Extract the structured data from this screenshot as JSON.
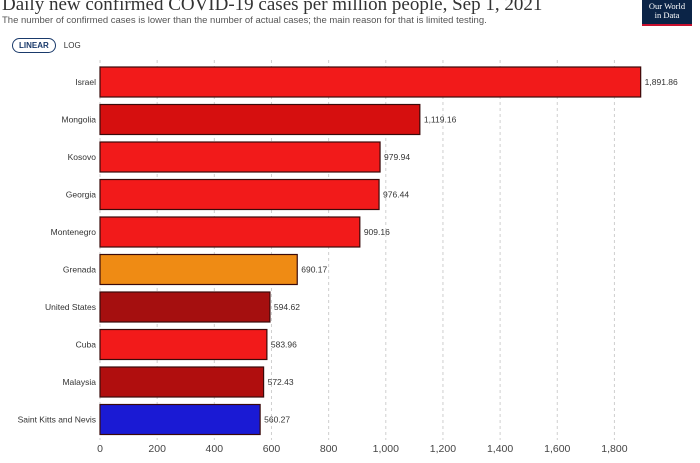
{
  "header": {
    "title": "Daily new confirmed COVID-19 cases per million people, Sep 1, 2021",
    "subtitle": "The number of confirmed cases is lower than the number of actual cases; the main reason for that is limited testing.",
    "logo_line1": "Our World",
    "logo_line2": "in Data"
  },
  "controls": {
    "linear_label": "LINEAR",
    "log_label": "LOG",
    "selected": "linear"
  },
  "chart_data": {
    "type": "bar",
    "orientation": "horizontal",
    "title": "Daily new confirmed COVID-19 cases per million people, Sep 1, 2021",
    "categories": [
      "Israel",
      "Mongolia",
      "Kosovo",
      "Georgia",
      "Montenegro",
      "Grenada",
      "United States",
      "Cuba",
      "Malaysia",
      "Saint Kitts and Nevis"
    ],
    "values": [
      1891.86,
      1119.16,
      979.94,
      976.44,
      909.16,
      690.17,
      594.62,
      583.96,
      572.43,
      560.27
    ],
    "value_labels": [
      "1,891.86",
      "1,119.16",
      "979.94",
      "976.44",
      "909.16",
      "690.17",
      "594.62",
      "583.96",
      "572.43",
      "560.27"
    ],
    "colors": [
      "#f21a1a",
      "#d60f0f",
      "#f21a1a",
      "#f21a1a",
      "#f21a1a",
      "#ef8b14",
      "#a50f0f",
      "#f21a1a",
      "#b00e0e",
      "#1a1ad4"
    ],
    "xlim": [
      0,
      1900
    ],
    "xticks": [
      0,
      200,
      400,
      600,
      800,
      1000,
      1200,
      1400,
      1600,
      1800
    ],
    "xtick_labels": [
      "0",
      "200",
      "400",
      "600",
      "800",
      "1,000",
      "1,200",
      "1,400",
      "1,600",
      "1,800"
    ],
    "grid": true,
    "gridline_color": "#cfcfcf"
  }
}
